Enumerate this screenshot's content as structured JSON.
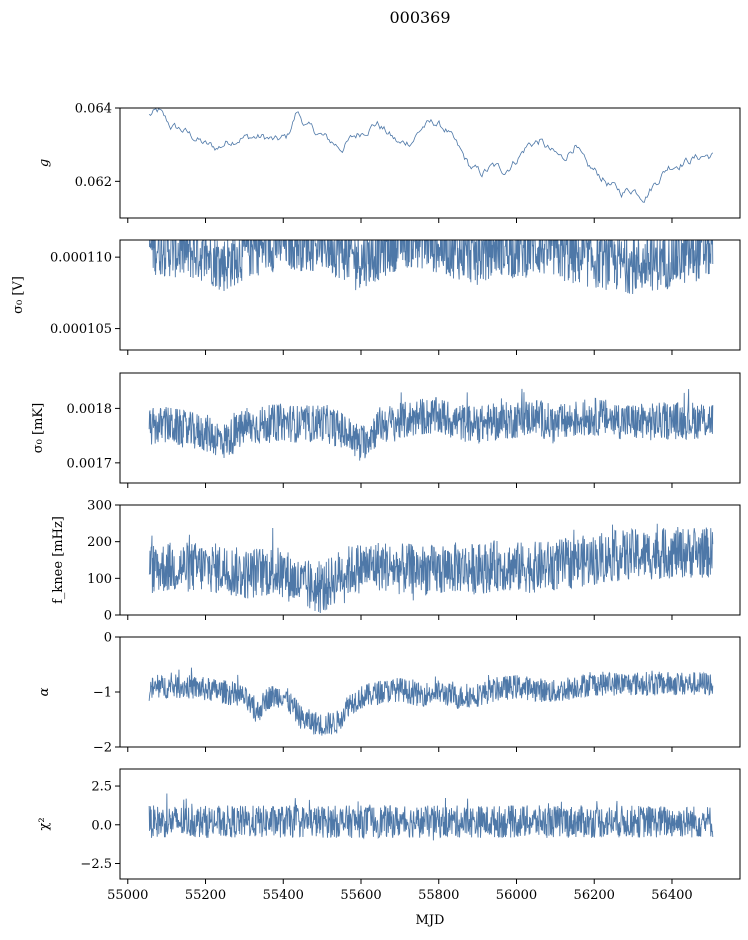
{
  "figure": {
    "title": "000369",
    "xlabel": "MJD"
  },
  "style": {
    "line_color": "#4e78a8",
    "axis_color": "#000000",
    "background": "#ffffff"
  },
  "chart_data": [
    {
      "type": "line",
      "panel": "g",
      "ylabel": "g",
      "ylabel_latex": "g",
      "xlim": [
        54980,
        56575
      ],
      "ylim": [
        0.061,
        0.064
      ],
      "yticks": [
        0.062,
        0.064
      ],
      "ytick_labels": [
        "0.062",
        "0.064"
      ],
      "xticks": [
        55000,
        55200,
        55400,
        55600,
        55800,
        56000,
        56200,
        56400
      ],
      "show_xticklabels": false,
      "grid": false,
      "x_range": [
        55055,
        56505
      ],
      "series": [
        {
          "x": [
            55055,
            55080,
            55110,
            55140,
            55170,
            55200,
            55230,
            55260,
            55290,
            55320,
            55350,
            55380,
            55410,
            55435,
            55460,
            55490,
            55520,
            55550,
            55580,
            55610,
            55640,
            55670,
            55700,
            55730,
            55760,
            55790,
            55820,
            55850,
            55880,
            55910,
            55940,
            55970,
            56000,
            56030,
            56060,
            56090,
            56120,
            56150,
            56180,
            56210,
            56240,
            56270,
            56300,
            56330,
            56360,
            56390,
            56420,
            56450,
            56480,
            56505
          ],
          "y": [
            0.0638,
            0.0639,
            0.0635,
            0.0634,
            0.0632,
            0.063,
            0.0629,
            0.0631,
            0.0632,
            0.0632,
            0.0632,
            0.0631,
            0.0632,
            0.0639,
            0.0635,
            0.0633,
            0.0631,
            0.0629,
            0.0632,
            0.0634,
            0.0636,
            0.0633,
            0.063,
            0.0631,
            0.0635,
            0.0636,
            0.0634,
            0.0629,
            0.0624,
            0.0622,
            0.0624,
            0.0623,
            0.0626,
            0.063,
            0.0631,
            0.0628,
            0.0626,
            0.063,
            0.0624,
            0.0622,
            0.0619,
            0.0617,
            0.0618,
            0.0616,
            0.062,
            0.0624,
            0.0625,
            0.0626,
            0.0627,
            0.0627
          ],
          "noise": 0.00012
        }
      ]
    },
    {
      "type": "line",
      "panel": "sigma0-volts",
      "ylabel": "σ0 [V]",
      "ylabel_latex": "σ₀ [V]",
      "xlim": [
        54980,
        56575
      ],
      "ylim": [
        0.0001035,
        0.0001112
      ],
      "yticks": [
        0.000105,
        0.00011
      ],
      "ytick_labels": [
        "0.000105",
        "0.000110"
      ],
      "xticks": [
        55000,
        55200,
        55400,
        55600,
        55800,
        56000,
        56200,
        56400
      ],
      "show_xticklabels": false,
      "grid": false,
      "x_range": [
        55055,
        56505
      ],
      "series": [
        {
          "x": [
            55055,
            55100,
            55150,
            55200,
            55250,
            55300,
            55350,
            55400,
            55450,
            55500,
            55550,
            55600,
            55650,
            55700,
            55750,
            55800,
            55850,
            55900,
            55950,
            56000,
            56050,
            56100,
            56150,
            56200,
            56250,
            56300,
            56350,
            56400,
            56450,
            56505
          ],
          "y": [
            0.0001108,
            0.0001106,
            0.0001104,
            0.0001102,
            0.0001095,
            0.0001104,
            0.0001108,
            0.0001111,
            0.000111,
            0.000111,
            0.0001104,
            0.0001098,
            0.0001104,
            0.0001112,
            0.0001112,
            0.0001108,
            0.0001104,
            0.00011,
            0.0001108,
            0.0001104,
            0.0001107,
            0.0001104,
            0.00011,
            0.0001098,
            0.0001096,
            0.0001094,
            0.0001096,
            0.0001098,
            0.0001102,
            0.0001106
          ],
          "band": 2e-06,
          "clip_top": true
        }
      ]
    },
    {
      "type": "line",
      "panel": "sigma0-mk",
      "ylabel": "σ0 [mK]",
      "ylabel_latex": "σ₀ [mK]",
      "xlim": [
        54980,
        56575
      ],
      "ylim": [
        0.001663,
        0.001865
      ],
      "yticks": [
        0.0017,
        0.0018
      ],
      "ytick_labels": [
        "0.0017",
        "0.0018"
      ],
      "xticks": [
        55000,
        55200,
        55400,
        55600,
        55800,
        56000,
        56200,
        56400
      ],
      "show_xticklabels": false,
      "grid": false,
      "x_range": [
        55055,
        56505
      ],
      "series": [
        {
          "x": [
            55055,
            55100,
            55150,
            55200,
            55250,
            55300,
            55350,
            55400,
            55450,
            55500,
            55550,
            55600,
            55650,
            55700,
            55750,
            55800,
            55850,
            55900,
            55950,
            56000,
            56050,
            56100,
            56150,
            56200,
            56250,
            56300,
            56350,
            56400,
            56450,
            56505
          ],
          "y": [
            0.001765,
            0.00177,
            0.00176,
            0.001755,
            0.00174,
            0.001765,
            0.00177,
            0.001775,
            0.00177,
            0.001775,
            0.00176,
            0.001735,
            0.00177,
            0.001775,
            0.001785,
            0.001785,
            0.001775,
            0.00177,
            0.001775,
            0.00178,
            0.001785,
            0.00177,
            0.00178,
            0.001785,
            0.00178,
            0.001775,
            0.001775,
            0.001778,
            0.001778,
            0.00178
          ],
          "band": 3.5e-05
        }
      ]
    },
    {
      "type": "line",
      "panel": "fknee",
      "ylabel": "fknee [mHz]",
      "ylabel_latex": "f_knee [mHz]",
      "xlim": [
        54980,
        56575
      ],
      "ylim": [
        0,
        300
      ],
      "yticks": [
        0,
        100,
        200,
        300
      ],
      "ytick_labels": [
        "0",
        "100",
        "200",
        "300"
      ],
      "xticks": [
        55000,
        55200,
        55400,
        55600,
        55800,
        56000,
        56200,
        56400
      ],
      "show_xticklabels": false,
      "grid": false,
      "x_range": [
        55055,
        56505
      ],
      "series": [
        {
          "x": [
            55055,
            55100,
            55150,
            55200,
            55250,
            55300,
            55350,
            55400,
            55450,
            55500,
            55550,
            55600,
            55650,
            55700,
            55750,
            55800,
            55850,
            55900,
            55950,
            56000,
            56050,
            56100,
            56150,
            56200,
            56250,
            56300,
            56350,
            56400,
            56450,
            56505
          ],
          "y": [
            125,
            130,
            130,
            130,
            125,
            110,
            120,
            115,
            80,
            70,
            115,
            130,
            135,
            125,
            125,
            120,
            130,
            125,
            135,
            130,
            130,
            135,
            145,
            150,
            160,
            165,
            165,
            170,
            170,
            170
          ],
          "band": 70,
          "clip_top": true
        }
      ]
    },
    {
      "type": "line",
      "panel": "alpha",
      "ylabel": "α",
      "ylabel_latex": "α",
      "xlim": [
        54980,
        56575
      ],
      "ylim": [
        -2,
        0
      ],
      "yticks": [
        -2,
        -1,
        0
      ],
      "ytick_labels": [
        "−2",
        "−1",
        "0"
      ],
      "xticks": [
        55000,
        55200,
        55400,
        55600,
        55800,
        56000,
        56200,
        56400
      ],
      "show_xticklabels": false,
      "grid": false,
      "x_range": [
        55055,
        56505
      ],
      "series": [
        {
          "x": [
            55055,
            55100,
            55150,
            55200,
            55250,
            55300,
            55330,
            55360,
            55400,
            55450,
            55500,
            55540,
            55570,
            55600,
            55650,
            55700,
            55750,
            55800,
            55850,
            55900,
            55950,
            56000,
            56050,
            56100,
            56150,
            56200,
            56250,
            56300,
            56350,
            56400,
            56450,
            56505
          ],
          "y": [
            -0.95,
            -0.9,
            -0.9,
            -0.95,
            -1.0,
            -1.1,
            -1.4,
            -1.1,
            -1.05,
            -1.5,
            -1.6,
            -1.55,
            -1.2,
            -1.1,
            -1.0,
            -0.95,
            -1.05,
            -1.0,
            -1.1,
            -1.05,
            -0.95,
            -0.9,
            -0.95,
            -1.0,
            -0.9,
            -0.85,
            -0.85,
            -0.85,
            -0.85,
            -0.85,
            -0.85,
            -0.85
          ],
          "band": 0.22
        }
      ]
    },
    {
      "type": "line",
      "panel": "chi2",
      "ylabel": "χ2",
      "ylabel_latex": "χ²",
      "xlim": [
        54980,
        56575
      ],
      "ylim": [
        -3.5,
        3.6
      ],
      "yticks": [
        -2.5,
        0.0,
        2.5
      ],
      "ytick_labels": [
        "−2.5",
        "0.0",
        "2.5"
      ],
      "xticks": [
        55000,
        55200,
        55400,
        55600,
        55800,
        56000,
        56200,
        56400
      ],
      "xtick_labels": [
        "55000",
        "55200",
        "55400",
        "55600",
        "55800",
        "56000",
        "56200",
        "56400"
      ],
      "show_xticklabels": true,
      "grid": false,
      "x_range": [
        55055,
        56505
      ],
      "series": [
        {
          "x": [
            55055,
            56505
          ],
          "y": [
            0.2,
            0.2
          ],
          "band": 1.05
        }
      ]
    }
  ]
}
